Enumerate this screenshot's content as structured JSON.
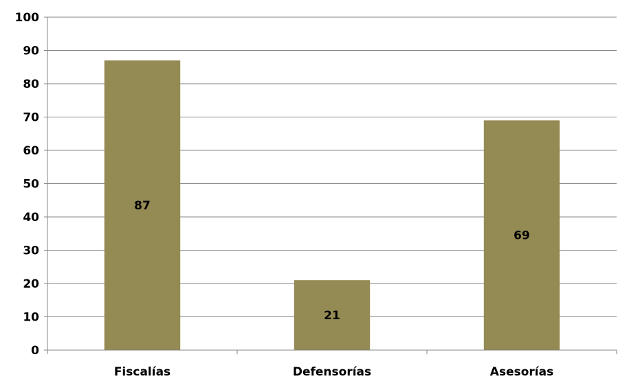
{
  "chart_data": {
    "type": "bar",
    "title": "",
    "xlabel": "",
    "ylabel": "",
    "categories": [
      "Fiscalías",
      "Defensorías",
      "Asesorías"
    ],
    "values": [
      87,
      21,
      69
    ],
    "data_labels": [
      "87",
      "21",
      "69"
    ],
    "ylim": [
      0,
      100
    ],
    "yticks": [
      0,
      10,
      20,
      30,
      40,
      50,
      60,
      70,
      80,
      90,
      100
    ],
    "ytick_labels": [
      "0",
      "10",
      "20",
      "30",
      "40",
      "50",
      "60",
      "70",
      "80",
      "90",
      "100"
    ],
    "grid": true,
    "legend": "none",
    "bar_color": "#948A54",
    "grid_color": "#868686",
    "data_label_position": "center"
  }
}
